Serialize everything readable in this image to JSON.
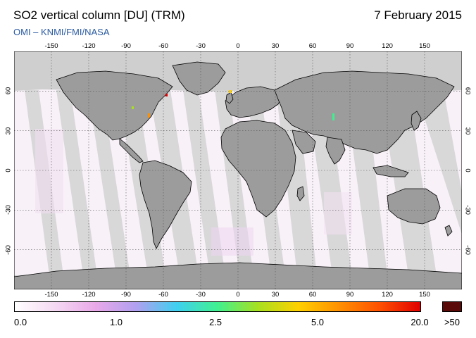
{
  "header": {
    "title": "SO2 vertical column [DU] (TRM)",
    "date": "7 February 2015",
    "credit": "OMI  –  KNMI/FMI/NASA"
  },
  "map": {
    "projection": "equirectangular",
    "lon_range": [
      -180,
      180
    ],
    "lat_range": [
      -90,
      90
    ],
    "lon_ticks": [
      -150,
      -120,
      -90,
      -60,
      -30,
      0,
      30,
      60,
      90,
      120,
      150
    ],
    "lat_ticks": [
      60,
      30,
      0,
      -30,
      -60
    ],
    "grid": "dotted",
    "colors": {
      "land_no_data": "#9a9a9a",
      "ocean_no_data": "#cfcfcf",
      "swath_fill": "#f6eff6",
      "coastline": "#000000",
      "gridline": "#666666"
    }
  },
  "colorbar": {
    "labels": [
      "0.0",
      "1.0",
      "2.5",
      "5.0",
      "20.0",
      ">50"
    ],
    "gradient": [
      "#ffffff",
      "#f4d8f2",
      "#e8a8e8",
      "#b0a0f0",
      "#3fd0f0",
      "#40f090",
      "#a8e020",
      "#ffd000",
      "#ff9000",
      "#ff5000",
      "#e00000"
    ],
    "over_color": "#5a0a08"
  }
}
